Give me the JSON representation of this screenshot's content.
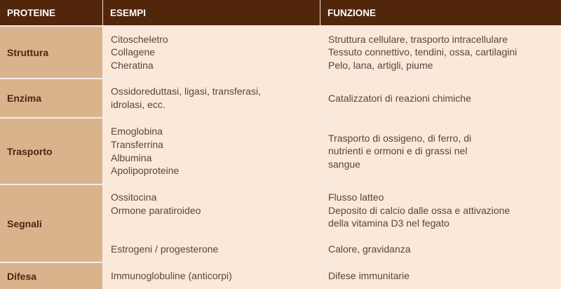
{
  "header": {
    "col1": "PROTEINE",
    "col2": "ESEMPI",
    "col3": "FUNZIONE"
  },
  "rows": [
    {
      "name": "Struttura",
      "esempi": [
        "Citoscheletro",
        "Collagene",
        "Cheratina"
      ],
      "funzione": [
        "Struttura cellulare, trasporto intracellulare",
        "Tessuto connettivo, tendini, ossa, cartilagini",
        "Pelo, lana, artigli, piume"
      ]
    },
    {
      "name": "Enzima",
      "esempi": [
        "Ossidoreduttasi, ligasi, transferasi,",
        "idrolasi, ecc."
      ],
      "funzione": [
        "Catalizzatori di reazioni chimiche"
      ]
    },
    {
      "name": "Trasporto",
      "esempi": [
        "Emoglobina",
        "Transferrina",
        "Albumina",
        "Apolipoproteine"
      ],
      "funzione": [
        "Trasporto di ossigeno, di ferro, di",
        "nutrienti e ormoni e di grassi nel",
        "sangue"
      ]
    },
    {
      "name": "Segnali",
      "esempi": [
        "Ossitocina",
        "Ormone paratiroideo",
        "",
        "",
        "Estrogeni / progesterone"
      ],
      "funzione": [
        "Flusso latteo",
        "Deposito di calcio dalle ossa e attivazione",
        "della vitamina D3 nel fegato",
        "",
        "Calore, gravidanza"
      ]
    },
    {
      "name": "Difesa",
      "esempi": [
        "Immunoglobuline (anticorpi)"
      ],
      "funzione": [
        "Difese immunitarie"
      ]
    }
  ],
  "colors": {
    "header_bg": "#52260a",
    "first_col_bg": "#d8b38c",
    "cell_bg": "#fbe8d8"
  }
}
